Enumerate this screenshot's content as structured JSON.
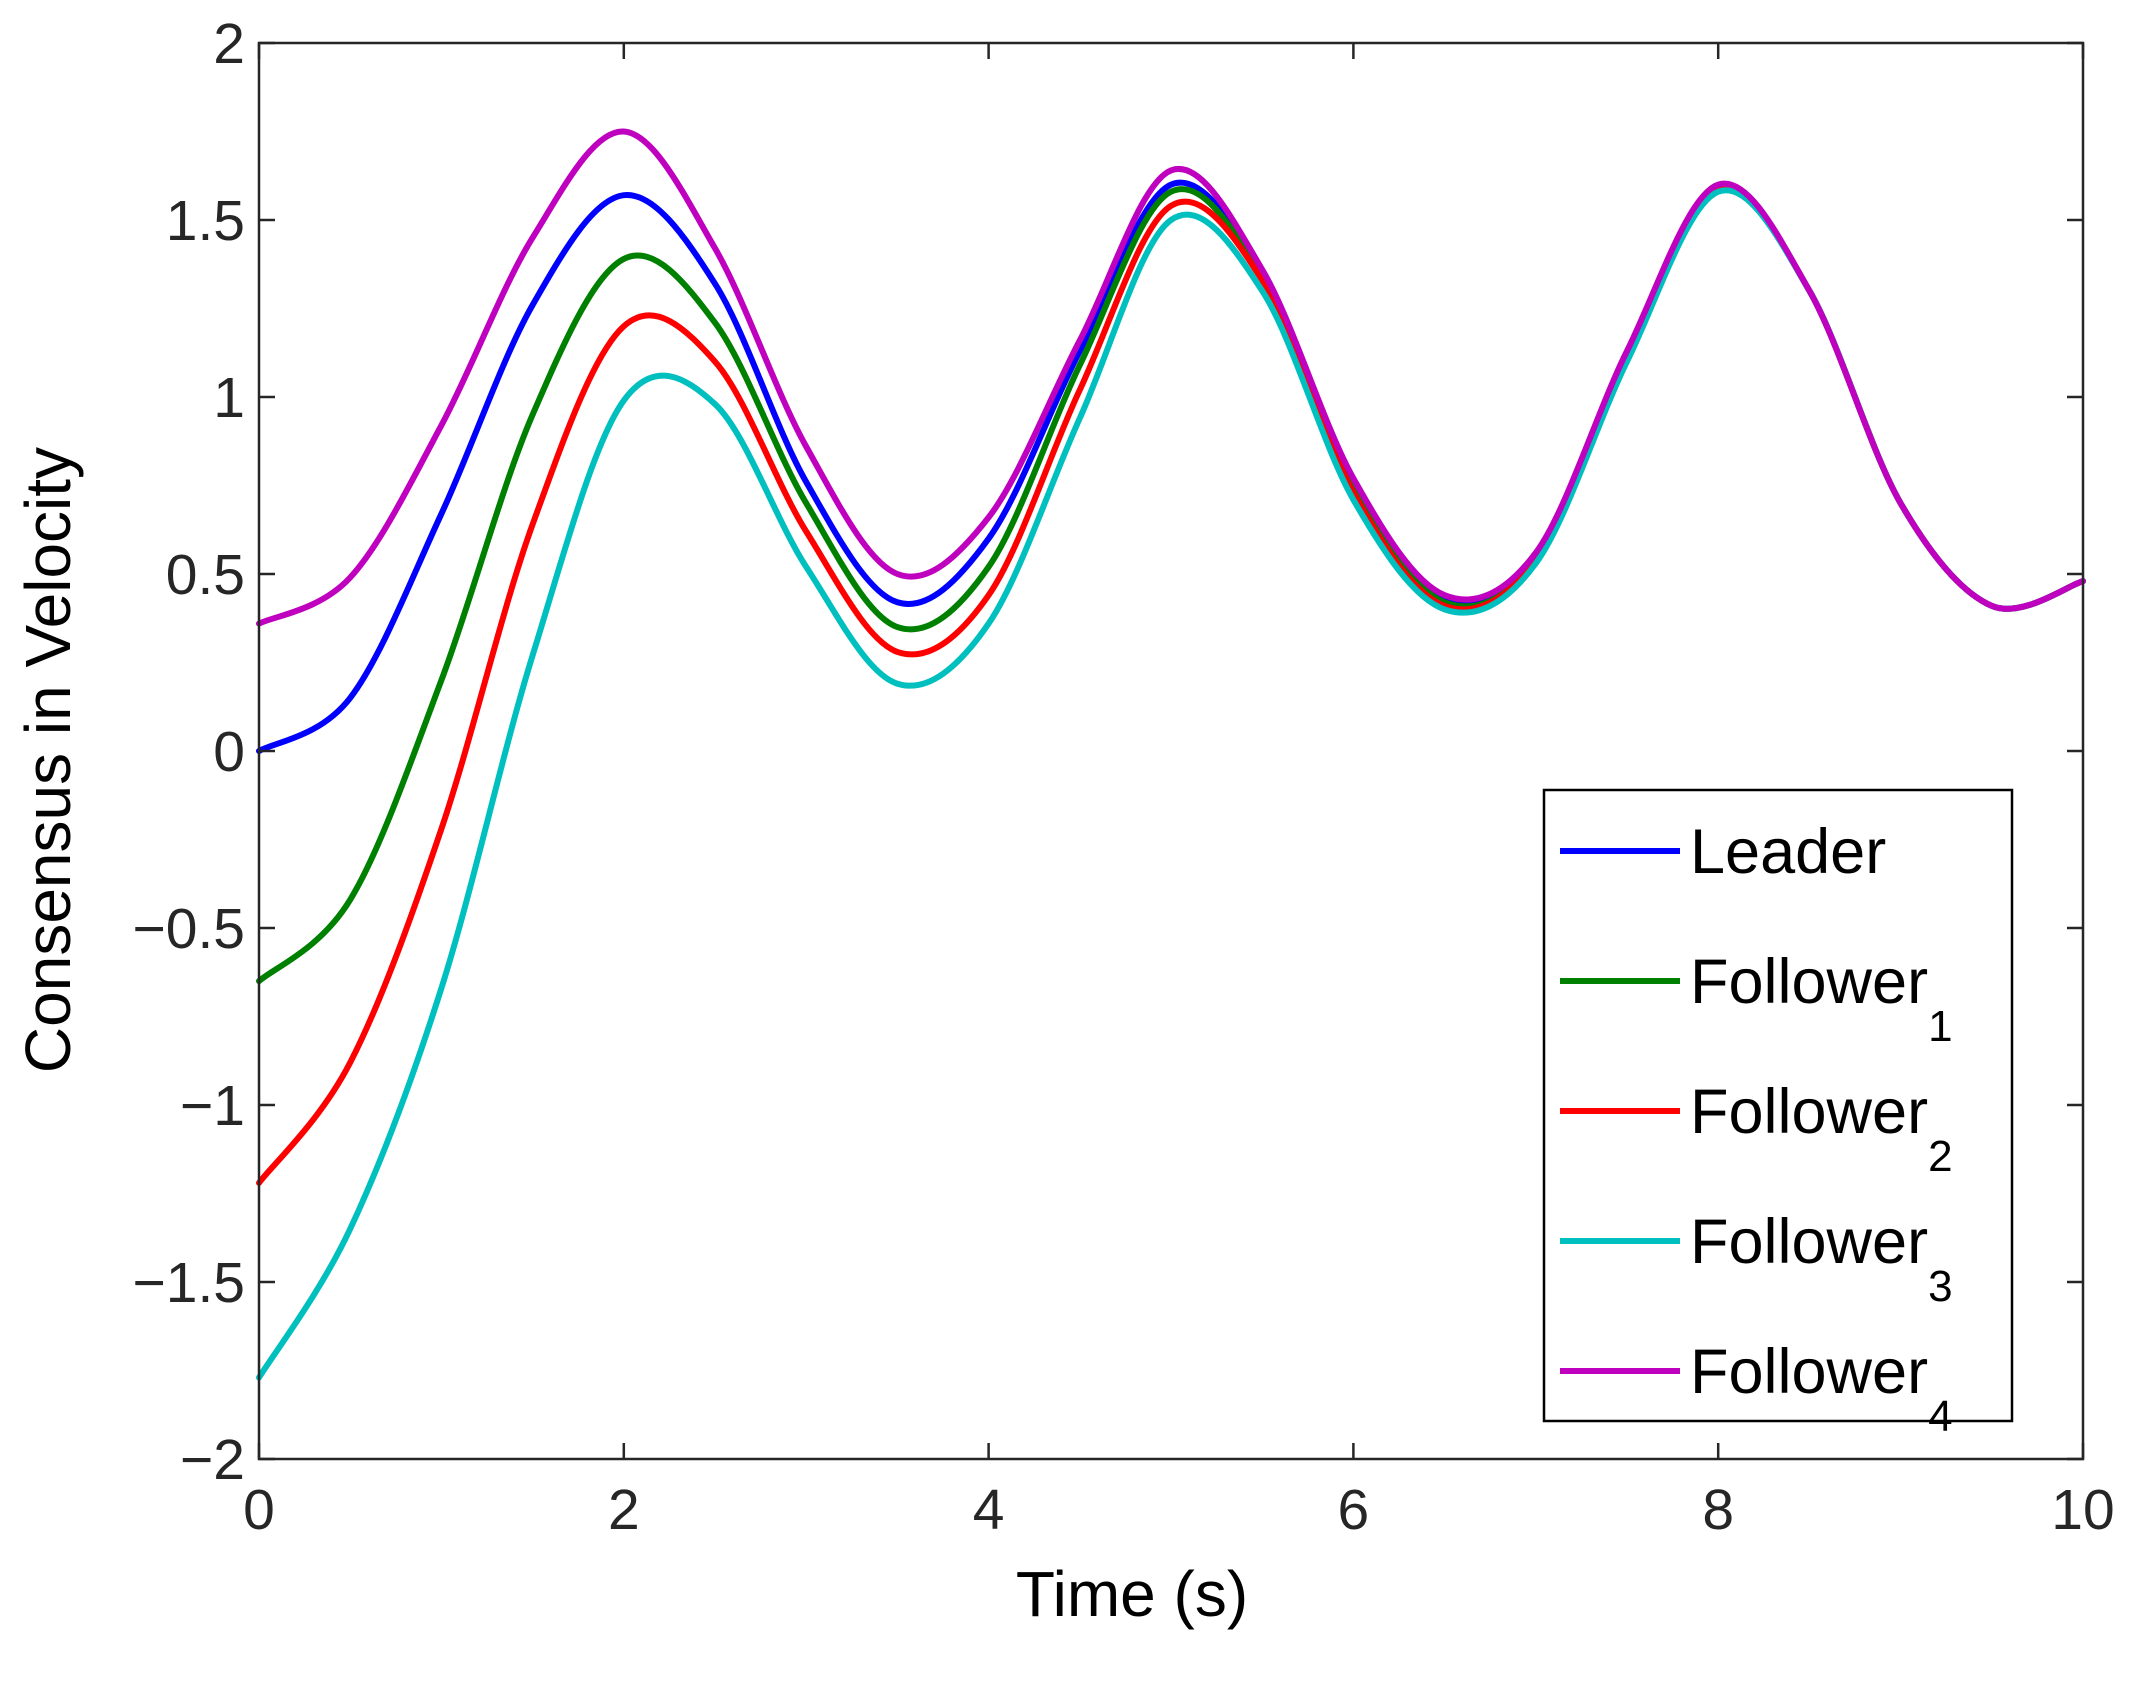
{
  "chart_data": {
    "type": "line",
    "title": "",
    "xlabel": "Time (s)",
    "ylabel": "Consensus in Velocity",
    "xlim": [
      0,
      10
    ],
    "ylim": [
      -2,
      2
    ],
    "xticks": [
      0,
      2,
      4,
      6,
      8,
      10
    ],
    "xtick_labels": [
      "0",
      "2",
      "4",
      "6",
      "8",
      "10"
    ],
    "yticks": [
      -2,
      -1.5,
      -1,
      -0.5,
      0,
      0.5,
      1,
      1.5,
      2
    ],
    "ytick_labels": [
      "−2",
      "−1.5",
      "−1",
      "−0.5",
      "0",
      "0.5",
      "1",
      "1.5",
      "2"
    ],
    "grid": false,
    "legend_position": "bottom-right",
    "x": [
      0,
      0.5,
      1,
      1.5,
      2,
      2.5,
      3,
      3.5,
      4,
      4.5,
      5,
      5.5,
      6,
      6.5,
      7,
      7.5,
      8,
      8.5,
      9,
      9.5,
      10
    ],
    "series": [
      {
        "name": "Leader",
        "subscript": "",
        "color": "#0000ff",
        "values": [
          0.0,
          0.15,
          0.67,
          1.26,
          1.57,
          1.32,
          0.76,
          0.42,
          0.6,
          1.13,
          1.6,
          1.35,
          0.75,
          0.43,
          0.55,
          1.12,
          1.59,
          1.3,
          0.7,
          0.41,
          0.48
        ]
      },
      {
        "name": "Follower",
        "subscript": "1",
        "color": "#008000",
        "values": [
          -0.65,
          -0.42,
          0.2,
          0.95,
          1.39,
          1.21,
          0.7,
          0.35,
          0.52,
          1.09,
          1.58,
          1.34,
          0.74,
          0.42,
          0.54,
          1.11,
          1.59,
          1.3,
          0.7,
          0.41,
          0.48
        ]
      },
      {
        "name": "Follower",
        "subscript": "2",
        "color": "#ff0000",
        "values": [
          -1.22,
          -0.88,
          -0.22,
          0.64,
          1.2,
          1.1,
          0.62,
          0.28,
          0.44,
          1.02,
          1.54,
          1.33,
          0.73,
          0.41,
          0.54,
          1.11,
          1.59,
          1.3,
          0.7,
          0.41,
          0.48
        ]
      },
      {
        "name": "Follower",
        "subscript": "3",
        "color": "#00bfbf",
        "values": [
          -1.77,
          -1.35,
          -0.67,
          0.27,
          0.99,
          0.98,
          0.52,
          0.19,
          0.36,
          0.94,
          1.5,
          1.3,
          0.71,
          0.4,
          0.53,
          1.1,
          1.58,
          1.3,
          0.7,
          0.41,
          0.48
        ]
      },
      {
        "name": "Follower",
        "subscript": "4",
        "color": "#bf00bf",
        "values": [
          0.36,
          0.49,
          0.92,
          1.45,
          1.75,
          1.42,
          0.86,
          0.5,
          0.66,
          1.16,
          1.64,
          1.36,
          0.77,
          0.44,
          0.56,
          1.13,
          1.6,
          1.3,
          0.7,
          0.41,
          0.48
        ]
      }
    ]
  }
}
